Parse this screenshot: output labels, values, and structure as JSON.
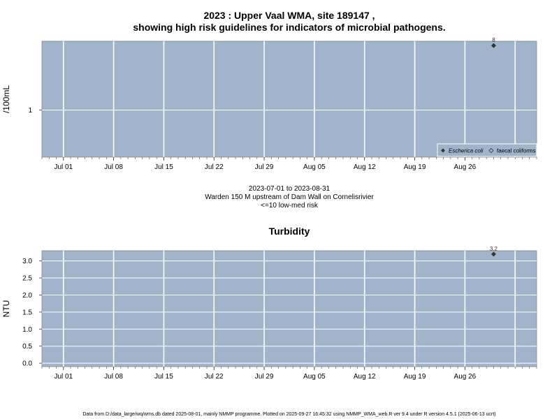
{
  "figure": {
    "title_line1": "2023 : Upper Vaal WMA, site 189147 ,",
    "title_line2": "showing high risk guidelines for indicators of microbial pathogens.",
    "date_range": "2023-07-01 to 2023-08-31",
    "site_desc": "Warden 150 M upstream of Dam Wall on Cornelisrivier",
    "risk_note": "<=10 low-med risk",
    "footer": "Data from D:/data_large/wq/wms.db dated 2025-08-01, mainly NMMP programme. Plotted on 2025-09-27 16:45:32 using NMMP_WMA_web.R ver 9.4 under R version 4.5.1 (2025-06-13 ucrt)"
  },
  "colors": {
    "panel_bg": "#a2b4cc",
    "grid": "#ffffff",
    "point": "#333333"
  },
  "chart_data": [
    {
      "type": "scatter",
      "title": "",
      "xlabel": "",
      "ylabel": "/100mL",
      "y_scale": "log",
      "xlim": [
        "2023-06-28",
        "2023-09-05"
      ],
      "ylim": [
        0.22,
        9.2
      ],
      "x_tick_labels": [
        "Jul 01",
        "Jul 08",
        "Jul 15",
        "Jul 22",
        "Jul 29",
        "Aug 05",
        "Aug 12",
        "Aug 19",
        "Aug 26"
      ],
      "x_tick_dates": [
        "2023-07-01",
        "2023-07-08",
        "2023-07-15",
        "2023-07-22",
        "2023-07-29",
        "2023-08-05",
        "2023-08-12",
        "2023-08-19",
        "2023-08-26"
      ],
      "y_ticks": [
        1
      ],
      "y_tick_labels": [
        "1"
      ],
      "grid": true,
      "legend_position": "bottom-right",
      "legend": [
        {
          "name": "Escherica coli",
          "marker": "filled-diamond"
        },
        {
          "name": "faecal coliforms",
          "marker": "open-diamond"
        }
      ],
      "series": [
        {
          "name": "Escherica coli",
          "points": [
            {
              "x": "2023-08-30",
              "y": 8,
              "label": "8"
            }
          ]
        }
      ]
    },
    {
      "type": "scatter",
      "title": "Turbidity",
      "xlabel": "",
      "ylabel": "NTU",
      "xlim": [
        "2023-06-28",
        "2023-09-05"
      ],
      "ylim": [
        -0.1,
        3.3
      ],
      "x_tick_labels": [
        "Jul 01",
        "Jul 08",
        "Jul 15",
        "Jul 22",
        "Jul 29",
        "Aug 05",
        "Aug 12",
        "Aug 19",
        "Aug 26"
      ],
      "x_tick_dates": [
        "2023-07-01",
        "2023-07-08",
        "2023-07-15",
        "2023-07-22",
        "2023-07-29",
        "2023-08-05",
        "2023-08-12",
        "2023-08-19",
        "2023-08-26"
      ],
      "y_ticks": [
        0,
        0.5,
        1,
        1.5,
        2,
        2.5,
        3
      ],
      "y_tick_labels": [
        "0.0",
        "0.5",
        "1.0",
        "1.5",
        "2.0",
        "2.5",
        "3.0"
      ],
      "grid": true,
      "series": [
        {
          "points": [
            {
              "x": "2023-08-30",
              "y": 3.2,
              "label": "3.2"
            }
          ]
        }
      ]
    }
  ]
}
